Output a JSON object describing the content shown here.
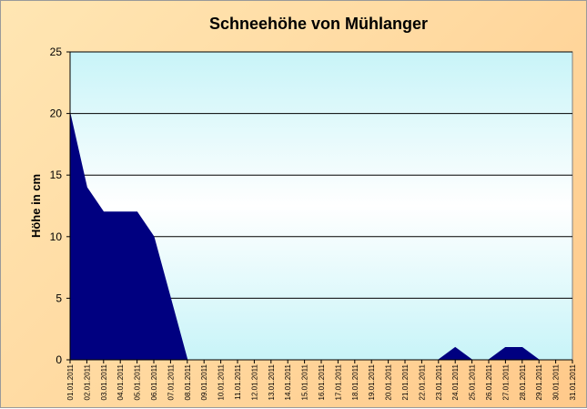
{
  "chart_data": {
    "type": "area",
    "title": "Schneehöhe von Mühlanger",
    "ylabel": "Höhe in cm",
    "xlabel": "",
    "ylim": [
      0,
      25
    ],
    "yticks": [
      0,
      5,
      10,
      15,
      20,
      25
    ],
    "grid": true,
    "legend": "none",
    "categories": [
      "01.01.2011",
      "02.01.2011",
      "03.01.2011",
      "04.01.2011",
      "05.01.2011",
      "06.01.2011",
      "07.01.2011",
      "08.01.2011",
      "09.01.2011",
      "10.01.2011",
      "11.01.2011",
      "12.01.2011",
      "13.01.2011",
      "14.01.2011",
      "15.01.2011",
      "16.01.2011",
      "17.01.2011",
      "18.01.2011",
      "19.01.2011",
      "20.01.2011",
      "21.01.2011",
      "22.01.2011",
      "23.01.2011",
      "24.01.2011",
      "25.01.2011",
      "26.01.2011",
      "27.01.2011",
      "28.01.2011",
      "29.01.2011",
      "30.01.2011",
      "31.01.2011"
    ],
    "values": [
      20,
      14,
      12,
      12,
      12,
      10,
      5,
      0,
      0,
      0,
      0,
      0,
      0,
      0,
      0,
      0,
      0,
      0,
      0,
      0,
      0,
      0,
      0,
      1,
      0,
      0,
      1,
      1,
      0,
      0,
      0
    ],
    "colors": {
      "area": "#000080",
      "plot_bg_top": "#c8f4f8",
      "plot_bg_mid": "#ffffff",
      "gridline": "#000000"
    }
  }
}
